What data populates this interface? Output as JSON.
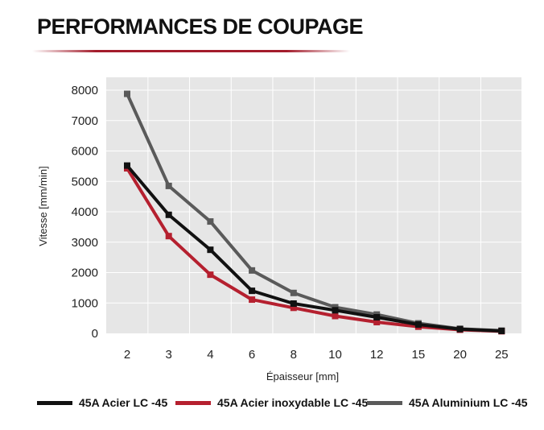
{
  "title": "PERFORMANCES DE COUPAGE",
  "colors": {
    "title_rule": "#a31d2c",
    "plot_bg": "#e6e6e6",
    "grid": "#ffffff"
  },
  "chart_data": {
    "type": "line",
    "x": [
      "2",
      "3",
      "4",
      "6",
      "8",
      "10",
      "12",
      "15",
      "20",
      "25"
    ],
    "xlabel": "Épaisseur [mm]",
    "ylabel": "Vitesse [mm/min]",
    "ylim": [
      0,
      8000
    ],
    "yticks": [
      0,
      1000,
      2000,
      3000,
      4000,
      5000,
      6000,
      7000,
      8000
    ],
    "grid": true,
    "legend_position": "bottom",
    "series": [
      {
        "name": "45A Acier LC -45",
        "color": "#111111",
        "values": [
          5520,
          3900,
          2750,
          1400,
          980,
          760,
          530,
          290,
          140,
          80
        ]
      },
      {
        "name": "45A Acier inoxydable LC -45",
        "color": "#b5202f",
        "values": [
          5430,
          3200,
          1930,
          1110,
          840,
          570,
          370,
          220,
          120,
          70
        ]
      },
      {
        "name": "45A Aluminium LC -45",
        "color": "#5a5a5a",
        "values": [
          7880,
          4850,
          3680,
          2070,
          1330,
          860,
          620,
          330,
          150,
          90
        ]
      }
    ]
  }
}
